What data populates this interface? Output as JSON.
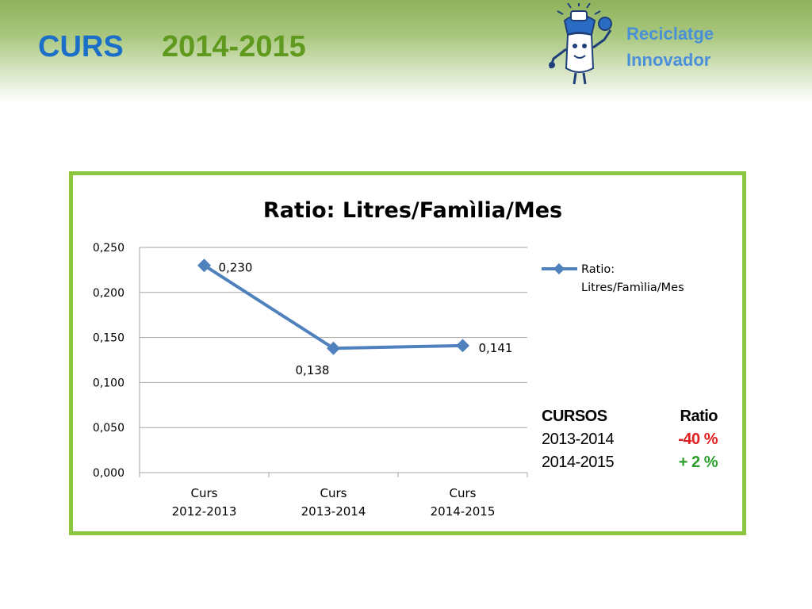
{
  "header": {
    "title_curs": "CURS",
    "title_year": "2014-2015",
    "logo_line1": "Reciclatge",
    "logo_line2": "Innovador"
  },
  "chart_data": {
    "type": "line",
    "title": "Ratio: Litres/Famìlia/Mes",
    "categories": [
      [
        "Curs",
        "2012-2013"
      ],
      [
        "Curs",
        "2013-2014"
      ],
      [
        "Curs",
        "2014-2015"
      ]
    ],
    "series": [
      {
        "name": "Ratio: Litres/Famìlia/Mes",
        "legend_lines": [
          "Ratio:",
          "Litres/Famìlia/Mes"
        ],
        "values": [
          0.23,
          0.138,
          0.141
        ],
        "labels": [
          "0,230",
          "0,138",
          "0,141"
        ],
        "color": "#4f81bd"
      }
    ],
    "ylim": [
      0,
      0.25
    ],
    "yticks": [
      "0,000",
      "0,050",
      "0,100",
      "0,150",
      "0,200",
      "0,250"
    ],
    "grid": true,
    "legend": "right"
  },
  "cursos_table": {
    "header": [
      "CURSOS",
      "Ratio"
    ],
    "rows": [
      {
        "curs": "2013-2014",
        "ratio": "-40 %",
        "color": "#e02020"
      },
      {
        "curs": "2014-2015",
        "ratio": "+ 2 %",
        "color": "#2e9e2e"
      }
    ]
  },
  "colors": {
    "frame_border": "#8cc63f",
    "title_blue": "#1b6fc9",
    "title_green": "#5f9a1f",
    "logo_text": "#4a90d9"
  }
}
